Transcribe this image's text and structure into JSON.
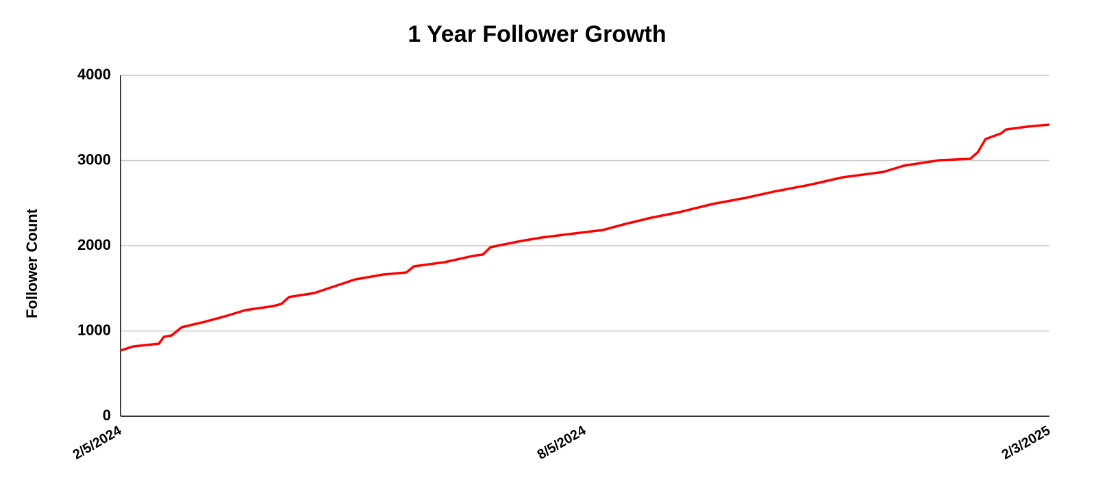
{
  "chart_data": {
    "type": "line",
    "title": "1 Year Follower Growth",
    "y_label": "Follower Count",
    "x": [
      "2/5/2024",
      "2/10/2024",
      "2/20/2024",
      "2/22/2024",
      "2/25/2024",
      "2/29/2024",
      "3/9/2024",
      "3/17/2024",
      "3/25/2024",
      "4/5/2024",
      "4/8/2024",
      "4/11/2024",
      "4/21/2024",
      "4/29/2024",
      "5/7/2024",
      "5/18/2024",
      "5/27/2024",
      "5/30/2024",
      "6/11/2024",
      "6/22/2024",
      "6/26/2024",
      "6/29/2024",
      "7/11/2024",
      "7/19/2024",
      "7/30/2024",
      "8/12/2024",
      "8/21/2024",
      "8/31/2024",
      "9/11/2024",
      "9/24/2024",
      "10/7/2024",
      "10/18/2024",
      "11/1/2024",
      "11/14/2024",
      "11/30/2024",
      "12/8/2024",
      "12/22/2024",
      "1/3/2025",
      "1/6/2025",
      "1/9/2025",
      "1/15/2025",
      "1/17/2025",
      "1/25/2025",
      "2/3/2025"
    ],
    "values": [
      771,
      819,
      851,
      932,
      948,
      1044,
      1108,
      1173,
      1245,
      1293,
      1317,
      1398,
      1446,
      1526,
      1606,
      1663,
      1687,
      1759,
      1807,
      1880,
      1896,
      1984,
      2056,
      2096,
      2137,
      2185,
      2257,
      2329,
      2394,
      2490,
      2562,
      2635,
      2715,
      2803,
      2867,
      2940,
      3004,
      3020,
      3100,
      3253,
      3317,
      3365,
      3397,
      3422
    ],
    "color": "#ff0000",
    "xlim": [
      "2/5/2024",
      "2/3/2025"
    ],
    "xticks": [
      "2/5/2024",
      "8/5/2024",
      "2/3/2025"
    ],
    "ylim": [
      0,
      4000
    ],
    "yticks": [
      0,
      1000,
      2000,
      3000,
      4000
    ],
    "grid": true
  }
}
